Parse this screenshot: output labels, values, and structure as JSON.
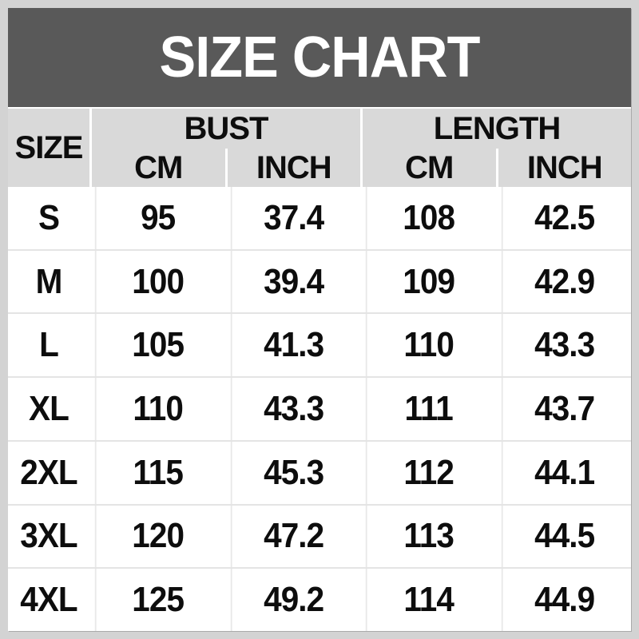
{
  "banner": {
    "title": "SIZE CHART"
  },
  "header": {
    "size": "SIZE",
    "bust": "BUST",
    "length": "LENGTH",
    "cm": "CM",
    "inch": "INCH"
  },
  "chart_data": {
    "type": "table",
    "title": "SIZE CHART",
    "columns": [
      "SIZE",
      "BUST CM",
      "BUST INCH",
      "LENGTH CM",
      "LENGTH INCH"
    ],
    "column_groups": [
      {
        "label": "BUST",
        "sub": [
          "CM",
          "INCH"
        ]
      },
      {
        "label": "LENGTH",
        "sub": [
          "CM",
          "INCH"
        ]
      }
    ],
    "rows": [
      [
        "S",
        "95",
        "37.4",
        "108",
        "42.5"
      ],
      [
        "M",
        "100",
        "39.4",
        "109",
        "42.9"
      ],
      [
        "L",
        "105",
        "41.3",
        "110",
        "43.3"
      ],
      [
        "XL",
        "110",
        "43.3",
        "111",
        "43.7"
      ],
      [
        "2XL",
        "115",
        "45.3",
        "112",
        "44.1"
      ],
      [
        "3XL",
        "120",
        "47.2",
        "113",
        "44.5"
      ],
      [
        "4XL",
        "125",
        "49.2",
        "114",
        "44.9"
      ]
    ]
  },
  "colors": {
    "banner_bg": "#595959",
    "banner_text": "#ffffff",
    "header_bg": "#d9d9d9",
    "frame_border": "#d3d3d3",
    "body_bg": "#ffffff",
    "grid_line": "#e4e4e4",
    "text": "#0d0d0d"
  }
}
